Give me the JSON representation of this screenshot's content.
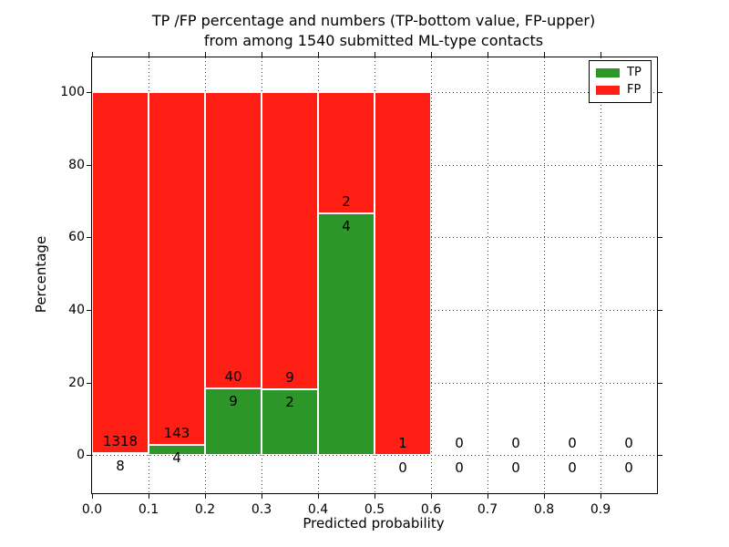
{
  "figure": {
    "title_line1": "TP /FP percentage and numbers (TP-bottom value, FP-upper)",
    "title_line2": "from among 1540 submitted ML-type contacts"
  },
  "chart_data": {
    "type": "bar",
    "stacked": true,
    "title": "TP /FP percentage and numbers (TP-bottom value, FP-upper)\nfrom among 1540 submitted ML-type contacts",
    "xlabel": "Predicted probability",
    "ylabel": "Percentage",
    "total_contacts": 1540,
    "xlim": [
      0.0,
      1.0
    ],
    "ylim": [
      -10.5,
      109.5
    ],
    "x_ticks": [
      "0.0",
      "0.1",
      "0.2",
      "0.3",
      "0.4",
      "0.5",
      "0.6",
      "0.7",
      "0.8",
      "0.9"
    ],
    "y_ticks": [
      0,
      20,
      40,
      60,
      80,
      100
    ],
    "grid": "dotted",
    "bin_width": 0.1,
    "series": [
      {
        "name": "TP",
        "color": "#2d9628",
        "counts": [
          8,
          4,
          9,
          2,
          4,
          0,
          0,
          0,
          0,
          0
        ]
      },
      {
        "name": "FP",
        "color": "#fe1e14",
        "counts": [
          1318,
          143,
          40,
          9,
          2,
          1,
          0,
          0,
          0,
          0
        ]
      }
    ],
    "bar_percentages": {
      "note": "each non-empty bin is normalized to 100%; TP share shown as green bottom segment",
      "tp_pct": [
        0.6,
        2.72,
        18.37,
        18.18,
        66.67,
        0.0,
        null,
        null,
        null,
        null
      ]
    },
    "legend": {
      "position": "upper right",
      "entries": [
        "TP",
        "FP"
      ]
    }
  },
  "colors": {
    "tp_green": "#2d9628",
    "fp_red": "#fe1e14",
    "grid": "#3a3a3a",
    "background": "#ffffff",
    "text": "#000000"
  }
}
